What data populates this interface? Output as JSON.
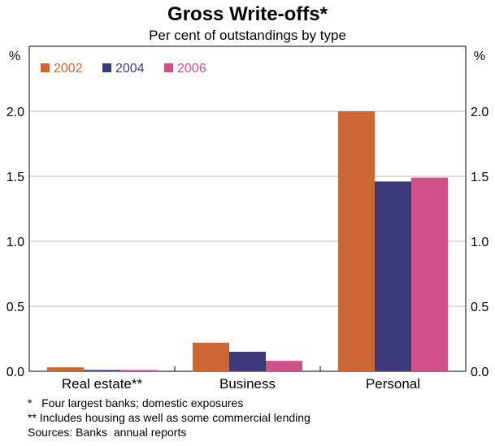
{
  "chart_data": {
    "type": "bar",
    "title": "Gross Write-offs*",
    "subtitle": "Per cent of outstandings by type",
    "ylabel_left": "%",
    "ylabel_right": "%",
    "categories": [
      "Real estate**",
      "Business",
      "Personal"
    ],
    "series": [
      {
        "name": "2002",
        "color": "#cc6633",
        "values": [
          0.03,
          0.22,
          2.0
        ]
      },
      {
        "name": "2004",
        "color": "#3d3a7a",
        "values": [
          0.01,
          0.15,
          1.46
        ]
      },
      {
        "name": "2006",
        "color": "#d0508a",
        "values": [
          0.01,
          0.08,
          1.49
        ]
      }
    ],
    "ylim": [
      0,
      2.5
    ],
    "yticks": [
      0.0,
      0.5,
      1.0,
      1.5,
      2.0
    ],
    "ytick_labels": [
      "0.0",
      "0.5",
      "1.0",
      "1.5",
      "2.0"
    ],
    "grid": true,
    "legend_position": "top-left"
  },
  "notes": [
    "*   Four largest banks; domestic exposures",
    "** Includes housing as well as some commercial lending",
    "Sources: Banks  annual reports"
  ]
}
